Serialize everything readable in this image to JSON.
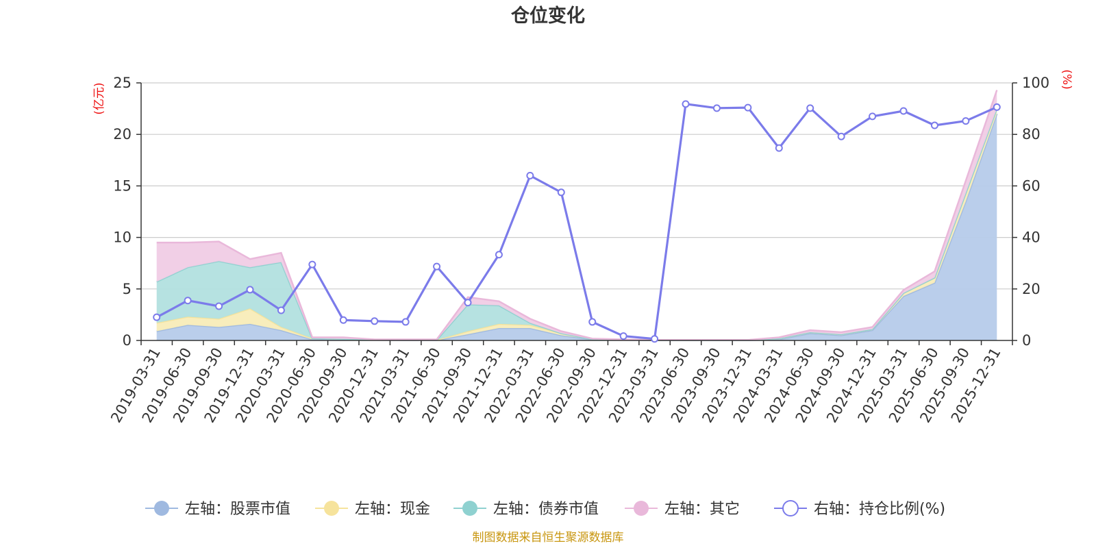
{
  "chart_data": {
    "type": "area",
    "title": "仓位变化",
    "left_axis_unit": "(亿元)",
    "right_axis_unit": "(%)",
    "left_ylim": [
      0,
      25
    ],
    "left_yticks": [
      "0",
      "5",
      "10",
      "15",
      "20",
      "25"
    ],
    "right_ylim": [
      0,
      100
    ],
    "right_yticks": [
      "0",
      "20",
      "40",
      "60",
      "80",
      "100"
    ],
    "x": [
      "2019-03-31",
      "2019-06-30",
      "2019-09-30",
      "2019-12-31",
      "2020-03-31",
      "2020-06-30",
      "2020-09-30",
      "2020-12-31",
      "2021-03-31",
      "2021-06-30",
      "2021-09-30",
      "2021-12-31",
      "2022-03-31",
      "2022-06-30",
      "2022-09-30",
      "2022-12-31",
      "2023-03-31",
      "2023-06-30",
      "2023-09-30",
      "2023-12-31",
      "2024-03-31",
      "2024-06-30",
      "2024-09-30",
      "2024-12-31",
      "2025-03-31",
      "2025-06-30",
      "2025-09-30",
      "2025-12-31"
    ],
    "grid": true,
    "legend_position": "bottom",
    "series": [
      {
        "name": "左轴：股票市值",
        "axis": "left",
        "stack": true,
        "color": "#9fb9e0",
        "fill": "#b6cbea",
        "values": [
          0.9,
          1.5,
          1.3,
          1.6,
          1.0,
          0.1,
          0.1,
          0.05,
          0.03,
          0.03,
          0.6,
          1.2,
          1.2,
          0.5,
          0.1,
          0.05,
          0.02,
          0.02,
          0.02,
          0.02,
          0.1,
          0.7,
          0.5,
          1.0,
          4.3,
          5.6,
          13.5,
          22.0
        ]
      },
      {
        "name": "左轴：现金",
        "axis": "left",
        "stack": true,
        "color": "#f6e39c",
        "fill": "#f8ecb8",
        "values": [
          0.8,
          0.8,
          0.8,
          1.5,
          0.3,
          0.1,
          0.05,
          0.03,
          0.02,
          0.02,
          0.3,
          0.4,
          0.3,
          0.2,
          0.02,
          0.02,
          0.02,
          0.02,
          0.02,
          0.02,
          0.1,
          0.1,
          0.1,
          0.1,
          0.3,
          0.5,
          0.8,
          0.5
        ]
      },
      {
        "name": "左轴：债券市值",
        "axis": "left",
        "stack": true,
        "color": "#8fd1d0",
        "fill": "#b2e0df",
        "values": [
          4.0,
          4.8,
          5.6,
          4.0,
          6.3,
          0,
          0,
          0,
          0,
          0,
          2.6,
          1.8,
          0.2,
          0,
          0,
          0,
          0,
          0,
          0,
          0,
          0,
          0,
          0,
          0,
          0,
          0,
          0,
          0
        ]
      },
      {
        "name": "左轴：其它",
        "axis": "left",
        "stack": true,
        "color": "#e9b8da",
        "fill": "#f0cce5",
        "values": [
          3.8,
          2.4,
          1.9,
          0.8,
          0.9,
          0.1,
          0.15,
          0.02,
          0.05,
          0.05,
          0.7,
          0.4,
          0.4,
          0.2,
          0.05,
          0.03,
          0.01,
          0.01,
          0.01,
          0.01,
          0.1,
          0.2,
          0.2,
          0.2,
          0.3,
          0.6,
          1.2,
          1.8
        ]
      },
      {
        "name": "右轴：持仓比例(%)",
        "axis": "right",
        "stack": false,
        "color": "#7b7bea",
        "values": [
          9.0,
          15.5,
          13.3,
          19.7,
          11.7,
          29.5,
          7.9,
          7.5,
          7.2,
          28.7,
          14.7,
          33.3,
          64.0,
          57.5,
          7.2,
          1.7,
          0.6,
          91.8,
          90.2,
          90.4,
          74.7,
          90.2,
          79.2,
          87.0,
          89.1,
          83.5,
          85.2,
          90.6
        ]
      }
    ]
  },
  "footer": {
    "source": "制图数据来自恒生聚源数据库"
  }
}
